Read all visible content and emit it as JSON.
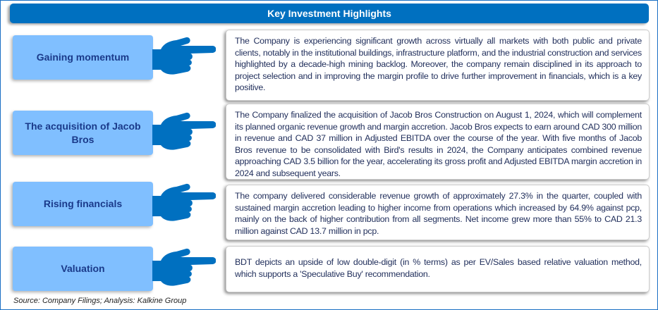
{
  "header": {
    "title": "Key Investment Highlights"
  },
  "rows": [
    {
      "label": "Gaining momentum",
      "text": "The Company is experiencing significant growth across virtually all markets with both public and private clients, notably in the institutional buildings, infrastructure platform, and the industrial construction and services highlighted by a decade-high mining backlog. Moreover, the company remain disciplined in its approach to project selection and in improving the margin profile to drive further improvement in financials, which is a key positive."
    },
    {
      "label": "The acquisition of Jacob Bros",
      "text": "The Company finalized the acquisition of Jacob Bros Construction on August 1, 2024, which will complement its planned organic revenue growth and margin accretion. Jacob Bros expects to earn around CAD 300 million in revenue and CAD 37 million in Adjusted EBITDA over the course of the year. With five months of Jacob Bros revenue to be consolidated with Bird's results in 2024, the Company anticipates combined revenue approaching CAD 3.5 billion for the year, accelerating its gross profit and Adjusted EBITDA margin accretion in 2024 and subsequent years."
    },
    {
      "label": "Rising financials",
      "text": "The company delivered considerable revenue growth of approximately 27.3% in the quarter, coupled with sustained margin accretion leading to higher income from operations which increased by 64.9% against pcp, mainly on the back of higher contribution from all segments. Net income grew more than 55% to CAD 21.3 million against CAD 13.7 million in pcp."
    },
    {
      "label": "Valuation",
      "text": "BDT depicts an upside of low double-digit (in % terms) as per EV/Sales based relative valuation method, which supports a 'Speculative Buy' recommendation."
    }
  ],
  "source": "Source: Company Filings; Analysis: Kalkine Group",
  "colors": {
    "header": "#0070c0",
    "label_bg": "#80bfff",
    "label_text": "#1a3a8a",
    "hand": "#0070c0",
    "body_text": "#1f2d5a"
  },
  "icons": {
    "pointer": "pointing-hand-icon"
  }
}
